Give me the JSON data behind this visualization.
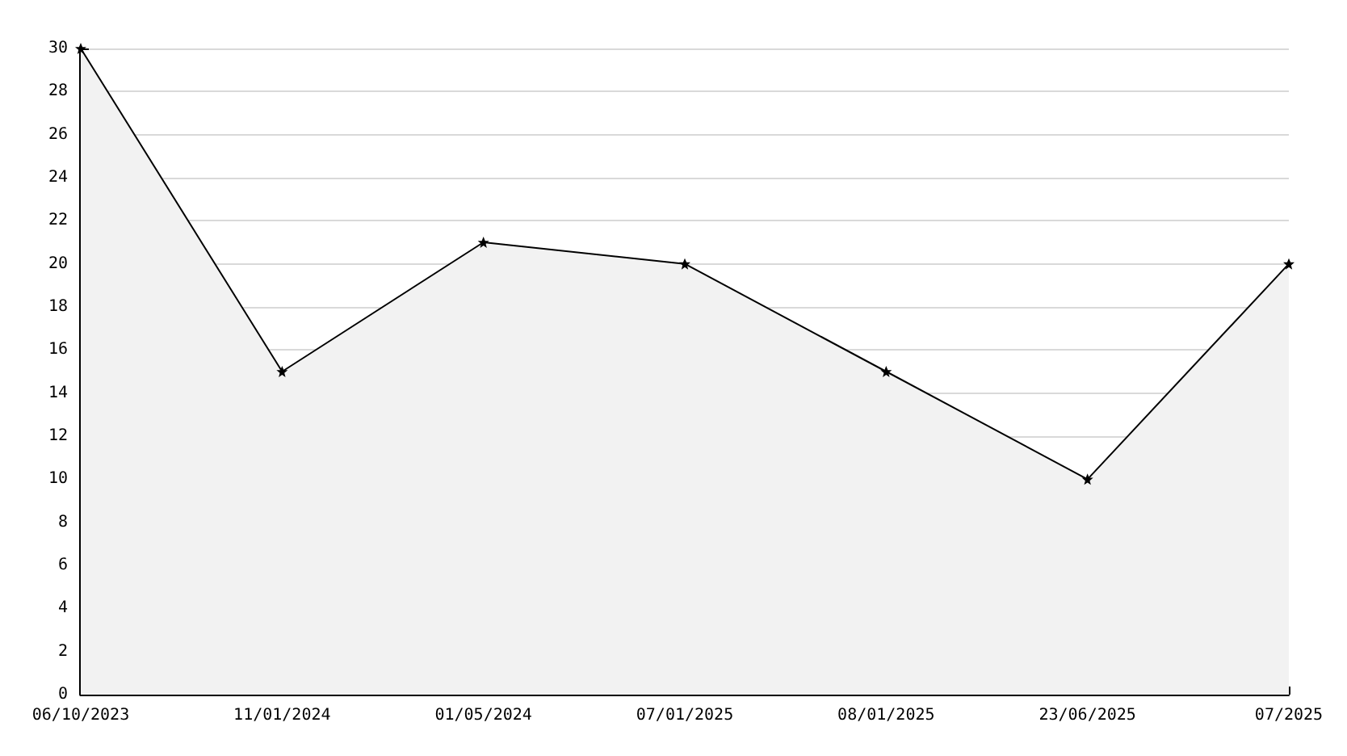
{
  "chart_data": {
    "type": "area",
    "categories": [
      "06/10/2023",
      "11/01/2024",
      "01/05/2024",
      "07/01/2025",
      "08/01/2025",
      "23/06/2025",
      "07/2025"
    ],
    "series": [
      {
        "color": "#000000",
        "values": [
          30,
          15,
          21,
          20,
          15,
          10,
          20
        ]
      }
    ],
    "ylim": [
      0,
      30
    ],
    "yticks": [
      0,
      2,
      4,
      6,
      8,
      10,
      12,
      14,
      16,
      18,
      20,
      22,
      24,
      26,
      28,
      30
    ],
    "grid": "y",
    "marker": "star",
    "line_style": "solid"
  }
}
